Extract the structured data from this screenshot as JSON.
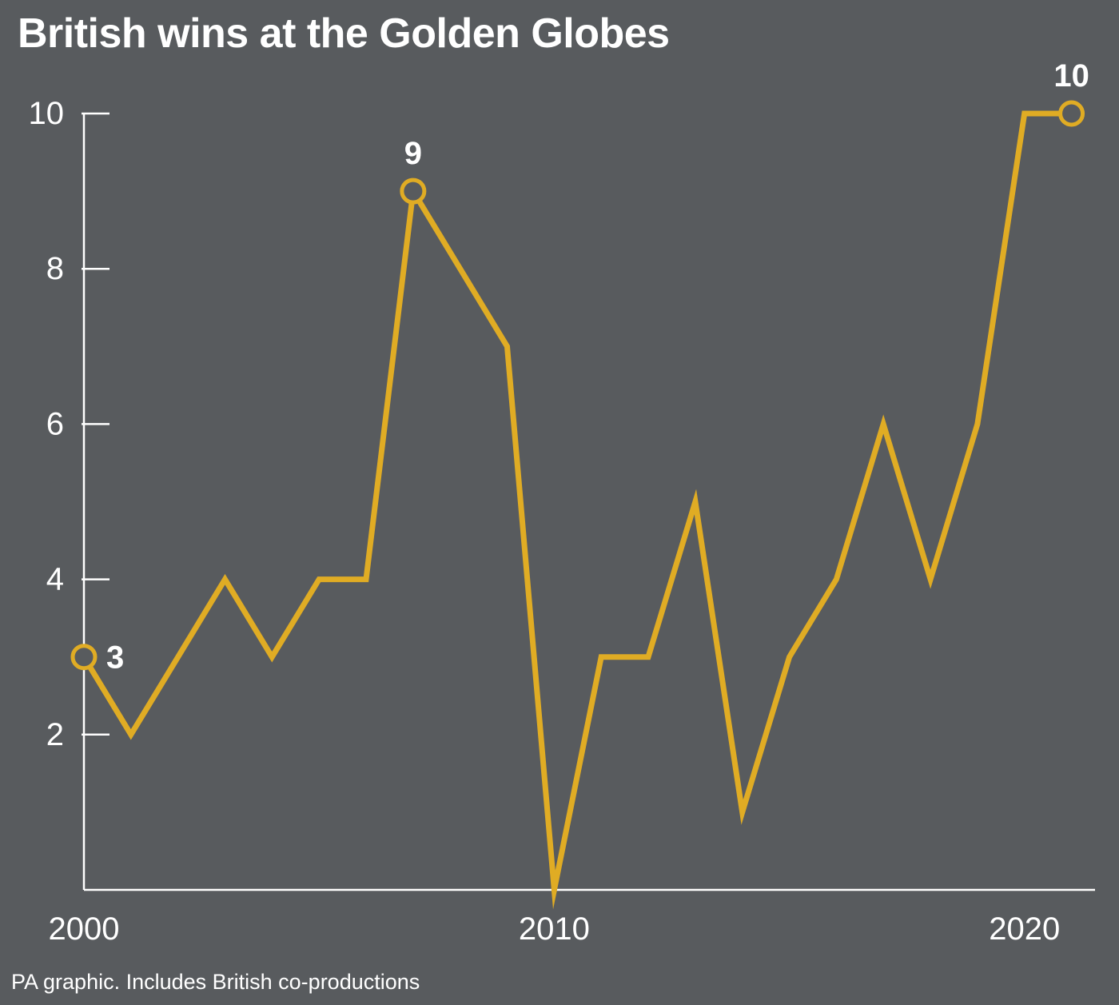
{
  "title": "British wins at the Golden Globes",
  "footnote": "PA graphic. Includes British co-productions",
  "colors": {
    "background": "#585b5e",
    "line": "#e0ac24",
    "axis": "#ffffff",
    "text": "#ffffff"
  },
  "chart_data": {
    "type": "line",
    "title": "British wins at the Golden Globes",
    "xlabel": "",
    "ylabel": "",
    "x": [
      2000,
      2001,
      2002,
      2003,
      2004,
      2005,
      2006,
      2007,
      2008,
      2009,
      2010,
      2011,
      2012,
      2013,
      2014,
      2015,
      2016,
      2017,
      2018,
      2019,
      2020,
      2021
    ],
    "series": [
      {
        "values": [
          3,
          2,
          3,
          4,
          3,
          4,
          4,
          9,
          8,
          7,
          0,
          3,
          3,
          5,
          1,
          3,
          4,
          6,
          4,
          6,
          10,
          10
        ]
      }
    ],
    "xlim": [
      2000,
      2021.5
    ],
    "ylim": [
      0,
      10
    ],
    "x_ticks": [
      2000,
      2010,
      2020
    ],
    "x_tick_labels": [
      "2000",
      "2010",
      "2020"
    ],
    "y_ticks": [
      2,
      4,
      6,
      8,
      10
    ],
    "y_tick_labels": [
      "2",
      "4",
      "6",
      "8",
      "10"
    ],
    "annotations": [
      {
        "x": 2000,
        "y": 3,
        "label": "3",
        "position": "right"
      },
      {
        "x": 2007,
        "y": 9,
        "label": "9",
        "position": "above"
      },
      {
        "x": 2021,
        "y": 10,
        "label": "10",
        "position": "above"
      }
    ],
    "grid": false,
    "legend": "none"
  }
}
